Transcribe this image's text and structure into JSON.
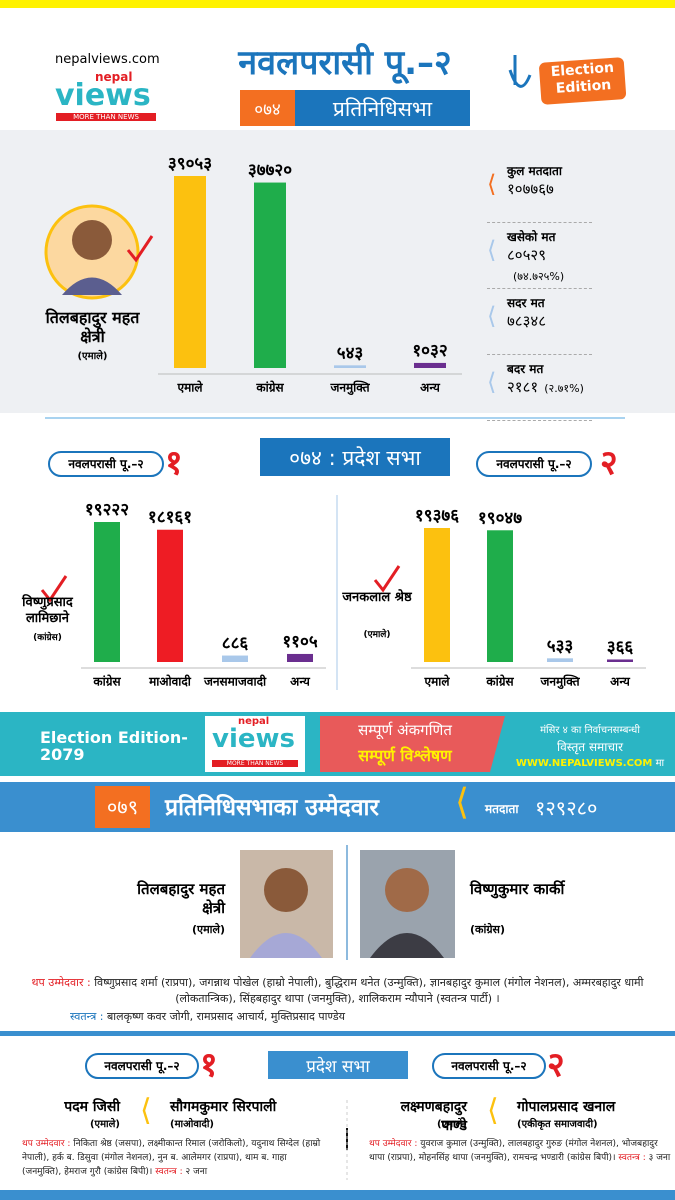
{
  "header": {
    "site": "nepalviews.com",
    "logo_top": "nepal",
    "logo": "views",
    "logo_tag": "MORE THAN NEWS",
    "title": "नवलपरासी पू.–२",
    "badge": [
      "Election",
      "Edition"
    ],
    "year": "०७४",
    "subtitle": "प्रतिनिधिसभा"
  },
  "federal_074": {
    "candidate": "तिलबहादुर महत क्षेत्री",
    "party": "(एमाले)",
    "chart": {
      "type": "bar",
      "categories": [
        "एमाले",
        "कांग्रेस",
        "जनमुक्ति",
        "अन्य"
      ],
      "values": [
        39053,
        37720,
        543,
        1032
      ],
      "value_labels": [
        "३९०५३",
        "३७७२०",
        "५४३",
        "१०३२"
      ],
      "colors": [
        "#fcc10f",
        "#1fad4b",
        "#a9c8ea",
        "#6a2e8f"
      ]
    },
    "stats": [
      {
        "label": "कुल मतदाता",
        "value": "१०७७६७"
      },
      {
        "label": "खसेको मत",
        "value": "८०५२९",
        "note": "(७४.७२५%)"
      },
      {
        "label": "सदर मत",
        "value": "७८३४८"
      },
      {
        "label": "बदर मत",
        "value": "२१८१",
        "note": "(२.७१%)"
      }
    ]
  },
  "province_074": {
    "heading": "०७४ : प्रदेश सभा",
    "sections": [
      {
        "tag": "नवलपरासी पू.–२",
        "number": "१",
        "candidate": "विष्णुप्रसाद लामिछाने",
        "party": "(कांग्रेस)",
        "chart": {
          "type": "bar",
          "categories": [
            "कांग्रेस",
            "माओवादी",
            "जनसमाजवादी",
            "अन्य"
          ],
          "values": [
            19222,
            18161,
            886,
            1105
          ],
          "value_labels": [
            "१९२२२",
            "१८१६१",
            "८८६",
            "११०५"
          ],
          "colors": [
            "#1fad4b",
            "#ee1c24",
            "#a9c8ea",
            "#6a2e8f"
          ]
        }
      },
      {
        "tag": "नवलपरासी पू.–२",
        "number": "२",
        "candidate": "जनकलाल श्रेष्ठ",
        "party": "(एमाले)",
        "chart": {
          "type": "bar",
          "categories": [
            "एमाले",
            "कांग्रेस",
            "जनमुक्ति",
            "अन्य"
          ],
          "values": [
            19376,
            19047,
            533,
            366
          ],
          "value_labels": [
            "१९३७६",
            "१९०४७",
            "५३३",
            "३६६"
          ],
          "colors": [
            "#fcc10f",
            "#1fad4b",
            "#a9c8ea",
            "#6a2e8f"
          ]
        }
      }
    ]
  },
  "banner": {
    "edition": "Election Edition- 2079",
    "logo_top": "nepal",
    "logo": "views",
    "logo_tag": "MORE THAN NEWS",
    "line1": "सम्पूर्ण अंकगणित",
    "line2": "सम्पूर्ण विश्लेषण",
    "info1": "मंसिर ४ का निर्वाचनसम्बन्धी",
    "info2": "विस्तृत समाचार",
    "url": "WWW.NEPALVIEWS.COM",
    "url_suffix": "मा"
  },
  "federal_079": {
    "year": "०७९",
    "heading": "प्रतिनिधिसभाका उम्मेदवार",
    "voters_label": "मतदाता",
    "voters": "१२९२८०",
    "candidates": [
      {
        "name": "तिलबहादुर महत क्षेत्री",
        "party": "(एमाले)"
      },
      {
        "name": "विष्णुकुमार कार्की",
        "party": "(कांग्रेस)"
      }
    ],
    "others_label": "थप उम्मेदवार :",
    "others": "विष्णुप्रसाद शर्मा (राप्रपा), जगन्नाथ पोखेल (हाम्रो नेपाली), बुद्धिराम थनेत (उन्मुक्ति), ज्ञानबहादुर कुमाल (मंगोल नेशनल), अम्मरबहादुर धामी (लोकतान्त्रिक), सिंहबहादुर थापा (जनमुक्ति), शालिकराम न्यौपाने (स्वतन्त्र पार्टी) ।",
    "independent_label": "स्वतन्त्र :",
    "independent": "बालकृष्ण कवर जोगी, रामप्रसाद आचार्य, मुक्तिप्रसाद पाण्डेय"
  },
  "province_079": {
    "heading": "प्रदेश सभा",
    "sections": [
      {
        "tag": "नवलपरासी पू.–२",
        "number": "१",
        "candidates": [
          {
            "name": "पदम जिसी",
            "party": "(एमाले)"
          },
          {
            "name": "सौगमकुमार सिरपाली",
            "party": "(माओवादी)"
          }
        ],
        "others_label": "थप उम्मेदवार :",
        "others": "निकिता श्रेष्ठ (जसपा), लक्ष्मीकान्त रिमाल (जरोकिलो), यदुनाथ सिग्देल (हाम्रो नेपाली), हर्क ब. डिसुवा (मंगोल नेशनल), नुन ब. आलेमगर (राप्रपा), थाम ब. गाहा (जनमुक्ति), हेमराज गुरौ (कांग्रेस बिपी)।",
        "independent_label": "स्वतन्त्र :",
        "independent": "२ जना"
      },
      {
        "tag": "नवलपरासी पू.–२",
        "number": "२",
        "candidates": [
          {
            "name": "लक्ष्मणबहादुर पाण्डे",
            "party": "(एमाले)"
          },
          {
            "name": "गोपालप्रसाद खनाल",
            "party": "(एकीकृत समाजवादी)"
          }
        ],
        "others_label": "थप उम्मेदवार :",
        "others": "युवराज कुमाल (उन्मुक्ति), लालबहादुर गुरुङ (मंगोल नेशनल), भोजबहादुर थापा (राप्रपा), मोहनसिंह थापा (जनमुक्ति), रामचन्द्र भण्डारी (कांग्रेस बिपी)।",
        "independent_label": "स्वतन्त्र :",
        "independent": "३ जना"
      }
    ]
  }
}
